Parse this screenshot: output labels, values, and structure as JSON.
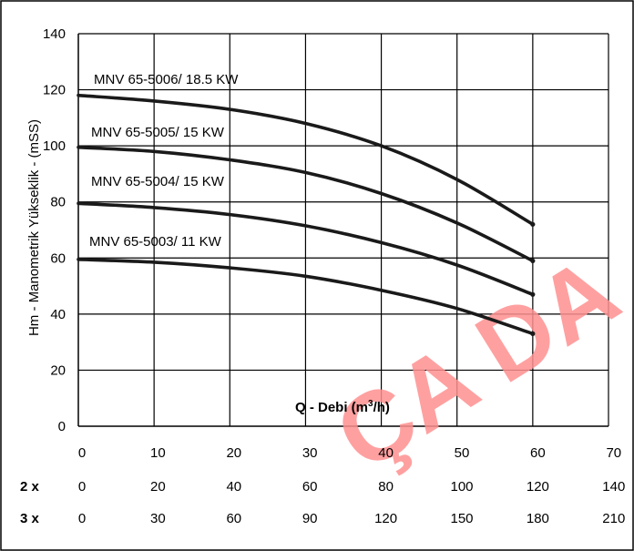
{
  "chart_data": {
    "type": "line",
    "title": "",
    "xlabel": "Q - Debi (m³/h)",
    "xlabel_parts": {
      "prefix": "Q - Debi (m",
      "superscript": "3",
      "suffix": "/h)"
    },
    "ylabel": "Hm - Manometrik Yükseklik - (mSS)",
    "xlim": [
      0,
      70
    ],
    "ylim": [
      0,
      140
    ],
    "grid": true,
    "x_ticks": [
      "0",
      "10",
      "20",
      "30",
      "40",
      "50",
      "60",
      "70"
    ],
    "y_ticks": [
      "0",
      "20",
      "40",
      "60",
      "80",
      "100",
      "120",
      "140"
    ],
    "extra_x_rows": [
      {
        "label": "2 x",
        "ticks": [
          "0",
          "20",
          "40",
          "60",
          "80",
          "100",
          "120",
          "140"
        ]
      },
      {
        "label": "3 x",
        "ticks": [
          "0",
          "30",
          "60",
          "90",
          "120",
          "150",
          "180",
          "210"
        ]
      }
    ],
    "series": [
      {
        "name": "MNV 65-5006/ 18.5 KW",
        "x": [
          0,
          10,
          20,
          30,
          40,
          50,
          60
        ],
        "y": [
          118,
          116,
          113,
          108,
          100,
          88,
          72
        ]
      },
      {
        "name": "MNV 65-5005/ 15 KW",
        "x": [
          0,
          10,
          20,
          30,
          40,
          50,
          60
        ],
        "y": [
          99.5,
          98,
          95,
          90.5,
          83,
          72.5,
          59
        ]
      },
      {
        "name": "MNV 65-5004/ 15 KW",
        "x": [
          0,
          10,
          20,
          30,
          40,
          50,
          60
        ],
        "y": [
          79.5,
          78,
          75.5,
          71.5,
          65.5,
          57.5,
          47
        ]
      },
      {
        "name": "MNV 65-5003/ 11 KW",
        "x": [
          0,
          10,
          20,
          30,
          40,
          50,
          60
        ],
        "y": [
          59.5,
          58.5,
          56.5,
          53.5,
          48.5,
          42,
          33
        ]
      }
    ],
    "watermark": "ÇA DA",
    "colors": {
      "curve": "#1a1a1a",
      "grid": "#000000",
      "watermark": "#ff8f8f"
    }
  }
}
